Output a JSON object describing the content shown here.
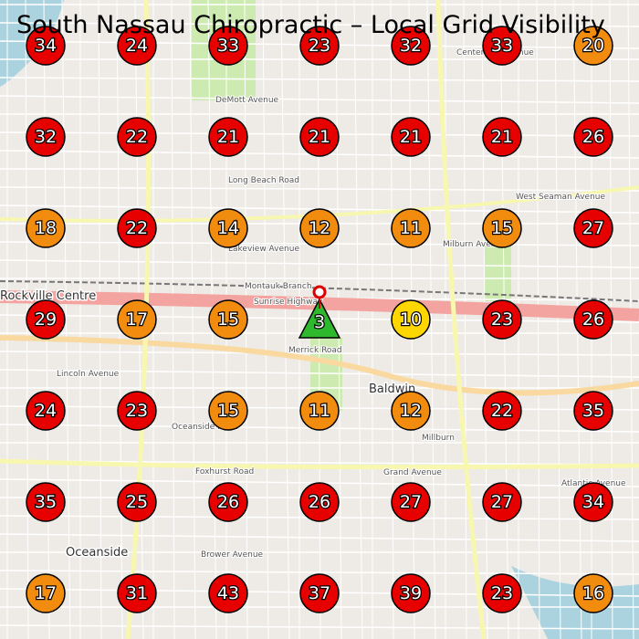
{
  "title": "South Nassau Chiropractic – Local Grid Visibility",
  "map_labels": [
    "Rockville Centre",
    "Baldwin",
    "Oceanside",
    "Millburn",
    "Merrick Road",
    "Sunrise Highway",
    "Foxhurst Road",
    "Brower Avenue",
    "Atlantic Avenue",
    "Lakeview Avenue",
    "DeMott Avenue",
    "Centennial Avenue",
    "Lincoln Avenue",
    "Oceanside Road",
    "Grand Avenue",
    "West Seaman Avenue",
    "Montauk Branch",
    "Milburn Avenue",
    "Long Beach Road"
  ],
  "grid": {
    "rows": [
      [
        {
          "value": 34,
          "color": "#e60000"
        },
        {
          "value": 24,
          "color": "#e60000"
        },
        {
          "value": 33,
          "color": "#e60000"
        },
        {
          "value": 23,
          "color": "#e60000"
        },
        {
          "value": 32,
          "color": "#e60000"
        },
        {
          "value": 33,
          "color": "#e60000"
        },
        {
          "value": 20,
          "color": "#f28c0f"
        }
      ],
      [
        {
          "value": 32,
          "color": "#e60000"
        },
        {
          "value": 22,
          "color": "#e60000"
        },
        {
          "value": 21,
          "color": "#e60000"
        },
        {
          "value": 21,
          "color": "#e60000"
        },
        {
          "value": 21,
          "color": "#e60000"
        },
        {
          "value": 21,
          "color": "#e60000"
        },
        {
          "value": 26,
          "color": "#e60000"
        }
      ],
      [
        {
          "value": 18,
          "color": "#f28c0f"
        },
        {
          "value": 22,
          "color": "#e60000"
        },
        {
          "value": 14,
          "color": "#f28c0f"
        },
        {
          "value": 12,
          "color": "#f28c0f"
        },
        {
          "value": 11,
          "color": "#f28c0f"
        },
        {
          "value": 15,
          "color": "#f28c0f"
        },
        {
          "value": 27,
          "color": "#e60000"
        }
      ],
      [
        {
          "value": 29,
          "color": "#e60000"
        },
        {
          "value": 17,
          "color": "#f28c0f"
        },
        {
          "value": 15,
          "color": "#f28c0f"
        },
        {
          "value": 3,
          "color": "#2eb82e",
          "shape": "triangle"
        },
        {
          "value": 10,
          "color": "#ffd700"
        },
        {
          "value": 23,
          "color": "#e60000"
        },
        {
          "value": 26,
          "color": "#e60000"
        }
      ],
      [
        {
          "value": 24,
          "color": "#e60000"
        },
        {
          "value": 23,
          "color": "#e60000"
        },
        {
          "value": 15,
          "color": "#f28c0f"
        },
        {
          "value": 11,
          "color": "#f28c0f"
        },
        {
          "value": 12,
          "color": "#f28c0f"
        },
        {
          "value": 22,
          "color": "#e60000"
        },
        {
          "value": 35,
          "color": "#e60000"
        }
      ],
      [
        {
          "value": 35,
          "color": "#e60000"
        },
        {
          "value": 25,
          "color": "#e60000"
        },
        {
          "value": 26,
          "color": "#e60000"
        },
        {
          "value": 26,
          "color": "#e60000"
        },
        {
          "value": 27,
          "color": "#e60000"
        },
        {
          "value": 27,
          "color": "#e60000"
        },
        {
          "value": 34,
          "color": "#e60000"
        }
      ],
      [
        {
          "value": 17,
          "color": "#f28c0f"
        },
        {
          "value": 31,
          "color": "#e60000"
        },
        {
          "value": 43,
          "color": "#e60000"
        },
        {
          "value": 37,
          "color": "#e60000"
        },
        {
          "value": 39,
          "color": "#e60000"
        },
        {
          "value": 23,
          "color": "#e60000"
        },
        {
          "value": 16,
          "color": "#f28c0f"
        }
      ]
    ]
  }
}
